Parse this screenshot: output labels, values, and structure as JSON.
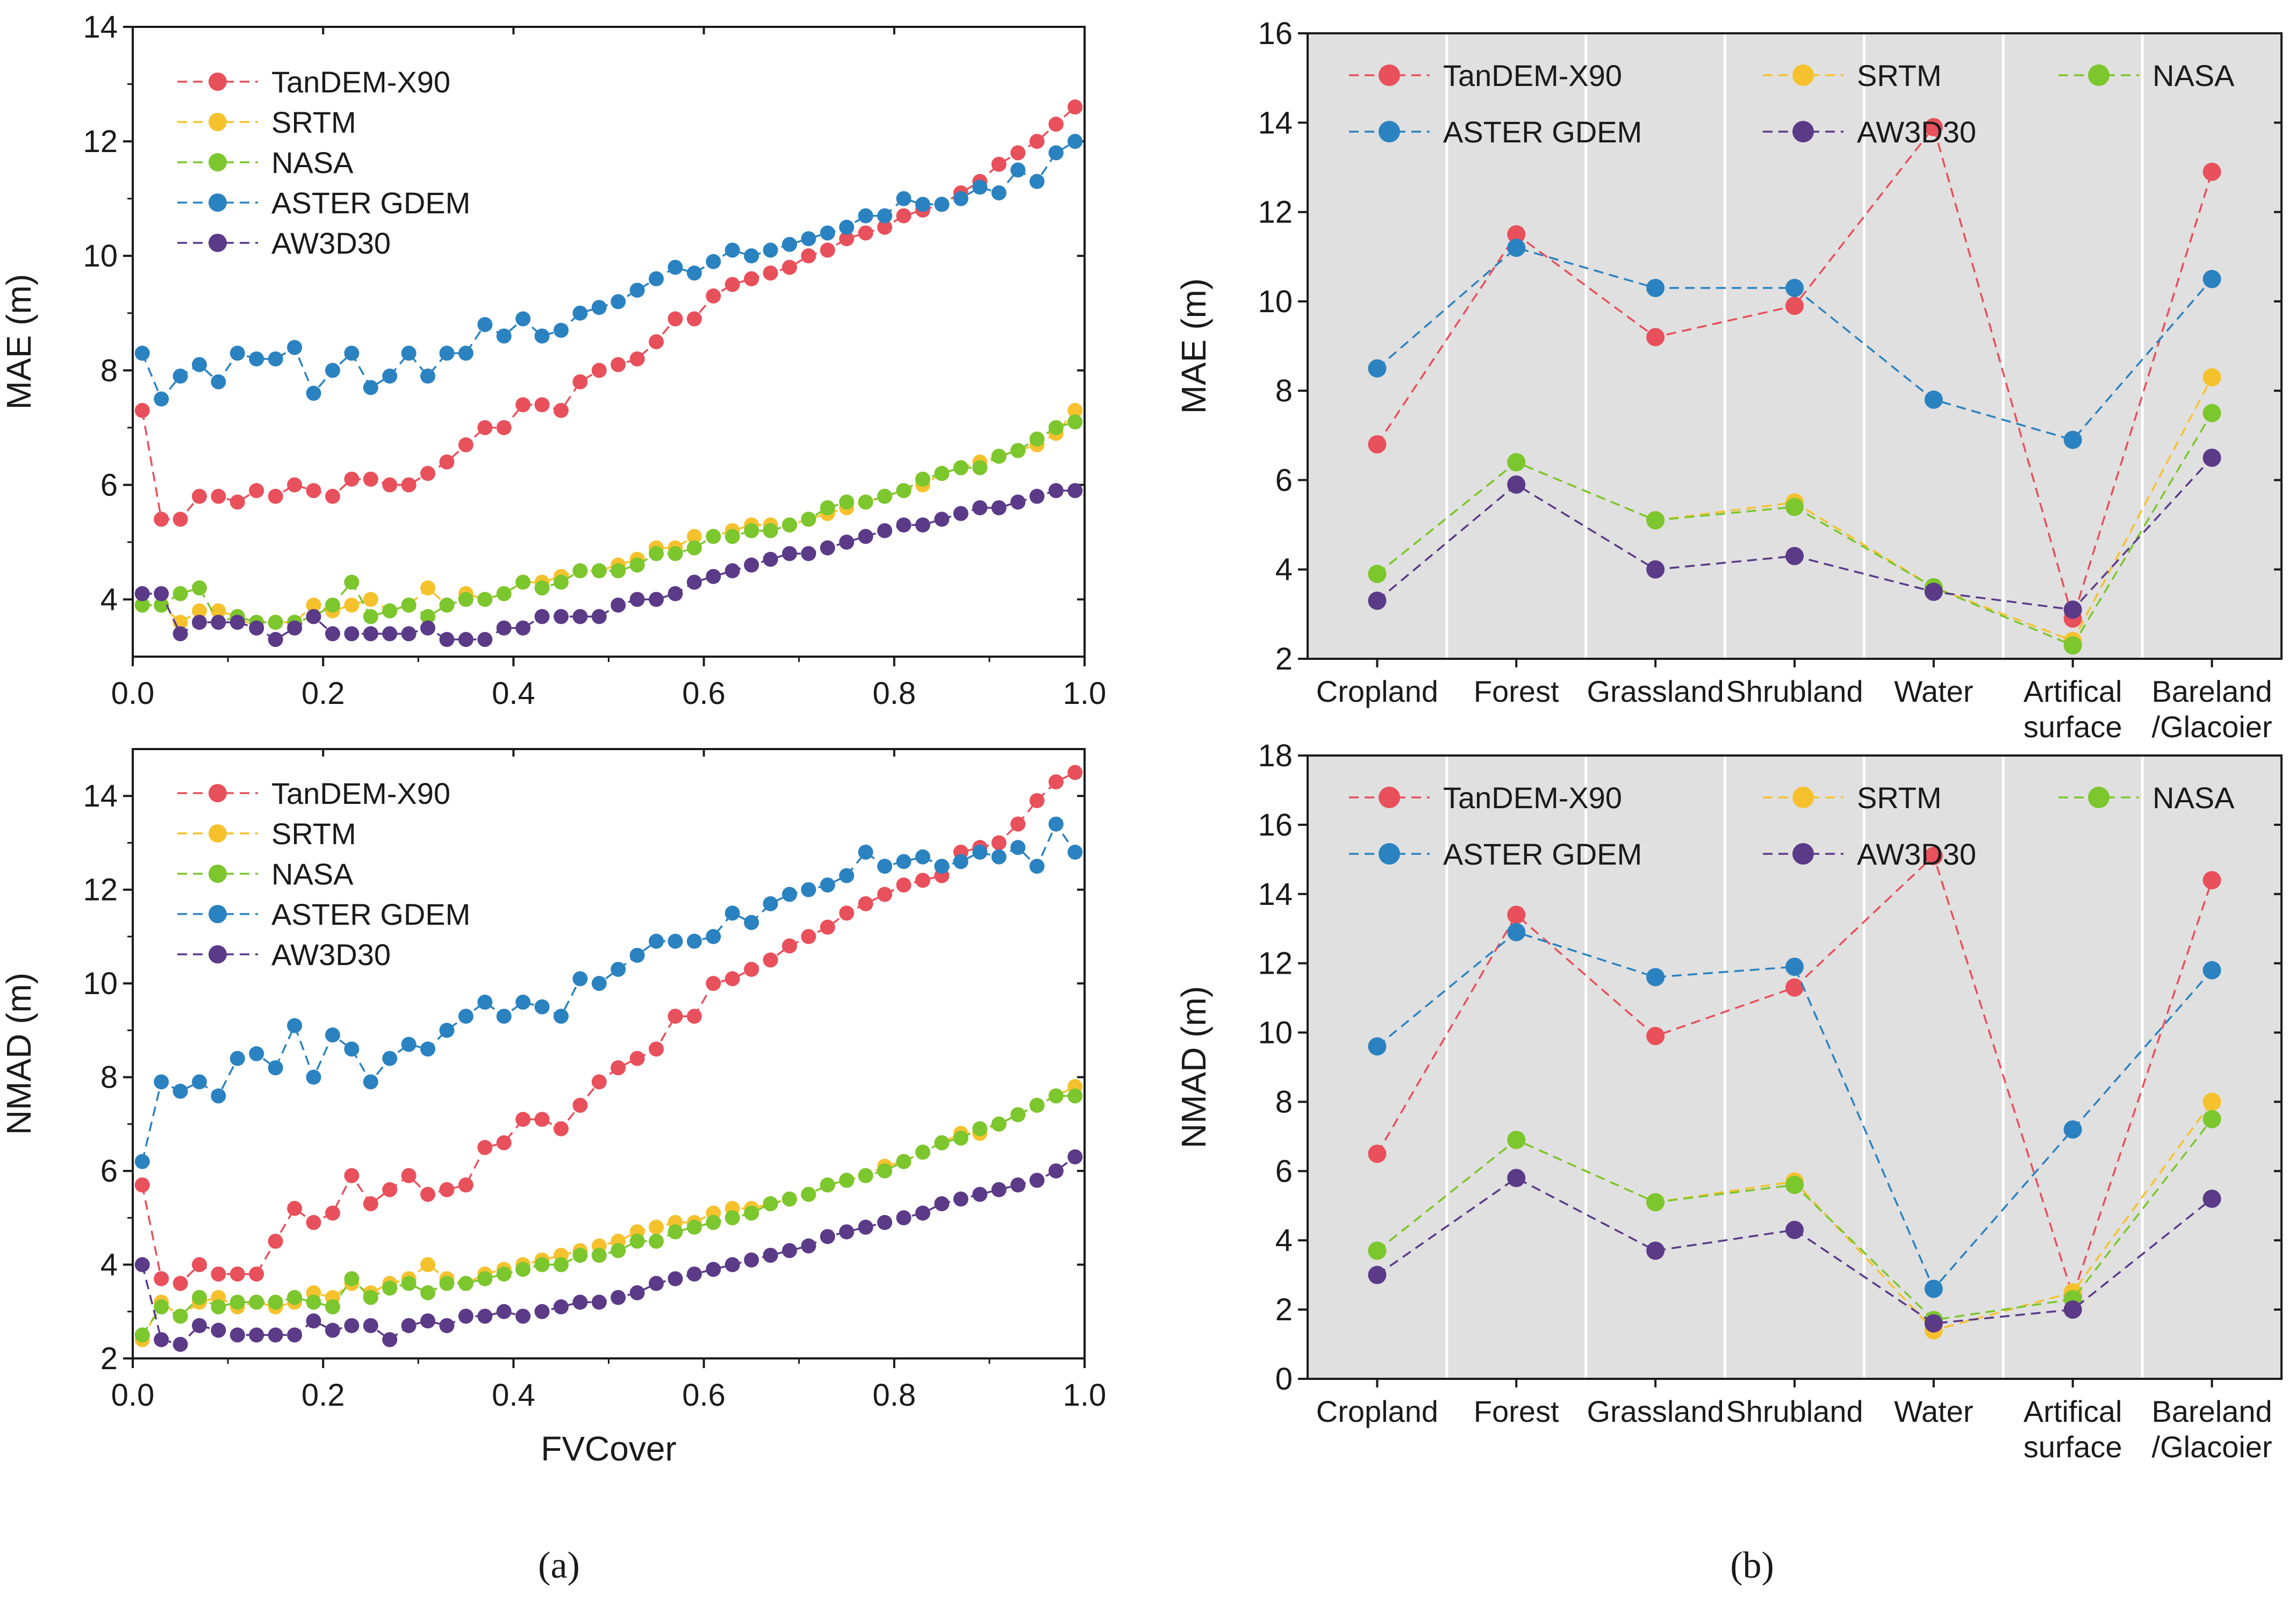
{
  "figure": {
    "panel_labels": [
      "(a)",
      "(b)"
    ],
    "colors": {
      "TanDEM-X90": "#e8505b",
      "SRTM": "#f5c22e",
      "NASA": "#7cc62e",
      "ASTER GDEM": "#2b82c0",
      "AW3D30": "#5b3a88",
      "panel_b_background": "#e0e0e0"
    }
  },
  "chart_data": [
    {
      "id": "a-top",
      "type": "line",
      "title": "",
      "xlabel": "",
      "ylabel": "MAE (m)",
      "xlim": [
        0,
        1
      ],
      "ylim": [
        3,
        14
      ],
      "xticks": [
        0.0,
        0.2,
        0.4,
        0.6,
        0.8,
        1.0
      ],
      "xtick_labels": [
        "0.0",
        "0.2",
        "0.4",
        "0.6",
        "0.8",
        "1.0"
      ],
      "yticks": [
        4,
        6,
        8,
        10,
        12,
        14
      ],
      "ytick_labels": [
        "4",
        "6",
        "8",
        "10",
        "12",
        "14"
      ],
      "legend": "top-left",
      "x": [
        0.01,
        0.03,
        0.05,
        0.07,
        0.09,
        0.11,
        0.13,
        0.15,
        0.17,
        0.19,
        0.21,
        0.23,
        0.25,
        0.27,
        0.29,
        0.31,
        0.33,
        0.35,
        0.37,
        0.39,
        0.41,
        0.43,
        0.45,
        0.47,
        0.49,
        0.51,
        0.53,
        0.55,
        0.57,
        0.59,
        0.61,
        0.63,
        0.65,
        0.67,
        0.69,
        0.71,
        0.73,
        0.75,
        0.77,
        0.79,
        0.81,
        0.83,
        0.85,
        0.87,
        0.89,
        0.91,
        0.93,
        0.95,
        0.97,
        0.99
      ],
      "series": [
        {
          "name": "TanDEM-X90",
          "values": [
            7.3,
            5.4,
            5.4,
            5.8,
            5.8,
            5.7,
            5.9,
            5.8,
            6.0,
            5.9,
            5.8,
            6.1,
            6.1,
            6.0,
            6.0,
            6.2,
            6.4,
            6.7,
            7.0,
            7.0,
            7.4,
            7.4,
            7.3,
            7.8,
            8.0,
            8.1,
            8.2,
            8.5,
            8.9,
            8.9,
            9.3,
            9.5,
            9.6,
            9.7,
            9.8,
            10.0,
            10.1,
            10.3,
            10.4,
            10.5,
            10.7,
            10.8,
            10.9,
            11.1,
            11.3,
            11.6,
            11.8,
            12.0,
            12.3,
            12.6
          ]
        },
        {
          "name": "SRTM",
          "values": [
            3.9,
            3.9,
            3.6,
            3.8,
            3.8,
            3.7,
            3.5,
            3.6,
            3.6,
            3.9,
            3.8,
            3.9,
            4.0,
            3.8,
            3.9,
            4.2,
            3.9,
            4.1,
            4.0,
            4.1,
            4.3,
            4.3,
            4.4,
            4.5,
            4.5,
            4.6,
            4.7,
            4.9,
            4.9,
            5.1,
            5.1,
            5.2,
            5.3,
            5.3,
            5.3,
            5.4,
            5.5,
            5.6,
            5.7,
            5.8,
            5.9,
            6.0,
            6.2,
            6.3,
            6.4,
            6.5,
            6.6,
            6.7,
            6.9,
            7.3
          ]
        },
        {
          "name": "NASA",
          "values": [
            3.9,
            3.9,
            4.1,
            4.2,
            3.6,
            3.7,
            3.6,
            3.6,
            3.6,
            3.7,
            3.9,
            4.3,
            3.7,
            3.8,
            3.9,
            3.7,
            3.9,
            4.0,
            4.0,
            4.1,
            4.3,
            4.2,
            4.3,
            4.5,
            4.5,
            4.5,
            4.6,
            4.8,
            4.8,
            4.9,
            5.1,
            5.1,
            5.2,
            5.2,
            5.3,
            5.4,
            5.6,
            5.7,
            5.7,
            5.8,
            5.9,
            6.1,
            6.2,
            6.3,
            6.3,
            6.5,
            6.6,
            6.8,
            7.0,
            7.1
          ]
        },
        {
          "name": "ASTER GDEM",
          "values": [
            8.3,
            7.5,
            7.9,
            8.1,
            7.8,
            8.3,
            8.2,
            8.2,
            8.4,
            7.6,
            8.0,
            8.3,
            7.7,
            7.9,
            8.3,
            7.9,
            8.3,
            8.3,
            8.8,
            8.6,
            8.9,
            8.6,
            8.7,
            9.0,
            9.1,
            9.2,
            9.4,
            9.6,
            9.8,
            9.7,
            9.9,
            10.1,
            10.0,
            10.1,
            10.2,
            10.3,
            10.4,
            10.5,
            10.7,
            10.7,
            11.0,
            10.9,
            10.9,
            11.0,
            11.2,
            11.1,
            11.5,
            11.3,
            11.8,
            12.0
          ]
        },
        {
          "name": "AW3D30",
          "values": [
            4.1,
            4.1,
            3.4,
            3.6,
            3.6,
            3.6,
            3.5,
            3.3,
            3.5,
            3.7,
            3.4,
            3.4,
            3.4,
            3.4,
            3.4,
            3.5,
            3.3,
            3.3,
            3.3,
            3.5,
            3.5,
            3.7,
            3.7,
            3.7,
            3.7,
            3.9,
            4.0,
            4.0,
            4.1,
            4.3,
            4.4,
            4.5,
            4.6,
            4.7,
            4.8,
            4.8,
            4.9,
            5.0,
            5.1,
            5.2,
            5.3,
            5.3,
            5.4,
            5.5,
            5.6,
            5.6,
            5.7,
            5.8,
            5.9,
            5.9
          ]
        }
      ]
    },
    {
      "id": "a-bottom",
      "type": "line",
      "title": "",
      "xlabel": "FVCover",
      "ylabel": "NMAD (m)",
      "xlim": [
        0,
        1
      ],
      "ylim": [
        2,
        15
      ],
      "xticks": [
        0.0,
        0.2,
        0.4,
        0.6,
        0.8,
        1.0
      ],
      "xtick_labels": [
        "0.0",
        "0.2",
        "0.4",
        "0.6",
        "0.8",
        "1.0"
      ],
      "yticks": [
        2,
        4,
        6,
        8,
        10,
        12,
        14
      ],
      "ytick_labels": [
        "2",
        "4",
        "6",
        "8",
        "10",
        "12",
        "14"
      ],
      "legend": "top-left",
      "x": [
        0.01,
        0.03,
        0.05,
        0.07,
        0.09,
        0.11,
        0.13,
        0.15,
        0.17,
        0.19,
        0.21,
        0.23,
        0.25,
        0.27,
        0.29,
        0.31,
        0.33,
        0.35,
        0.37,
        0.39,
        0.41,
        0.43,
        0.45,
        0.47,
        0.49,
        0.51,
        0.53,
        0.55,
        0.57,
        0.59,
        0.61,
        0.63,
        0.65,
        0.67,
        0.69,
        0.71,
        0.73,
        0.75,
        0.77,
        0.79,
        0.81,
        0.83,
        0.85,
        0.87,
        0.89,
        0.91,
        0.93,
        0.95,
        0.97,
        0.99
      ],
      "series": [
        {
          "name": "TanDEM-X90",
          "values": [
            5.7,
            3.7,
            3.6,
            4.0,
            3.8,
            3.8,
            3.8,
            4.5,
            5.2,
            4.9,
            5.1,
            5.9,
            5.3,
            5.6,
            5.9,
            5.5,
            5.6,
            5.7,
            6.5,
            6.6,
            7.1,
            7.1,
            6.9,
            7.4,
            7.9,
            8.2,
            8.4,
            8.6,
            9.3,
            9.3,
            10.0,
            10.1,
            10.3,
            10.5,
            10.8,
            11.0,
            11.2,
            11.5,
            11.7,
            11.9,
            12.1,
            12.2,
            12.3,
            12.8,
            12.9,
            13.0,
            13.4,
            13.9,
            14.3,
            14.5
          ]
        },
        {
          "name": "SRTM",
          "values": [
            2.4,
            3.2,
            2.9,
            3.2,
            3.3,
            3.1,
            3.2,
            3.1,
            3.2,
            3.4,
            3.3,
            3.6,
            3.4,
            3.6,
            3.7,
            4.0,
            3.7,
            3.6,
            3.8,
            3.9,
            4.0,
            4.1,
            4.2,
            4.3,
            4.4,
            4.5,
            4.7,
            4.8,
            4.9,
            4.9,
            5.1,
            5.2,
            5.2,
            5.3,
            5.4,
            5.5,
            5.7,
            5.8,
            5.9,
            6.1,
            6.2,
            6.4,
            6.6,
            6.8,
            6.8,
            7.0,
            7.2,
            7.4,
            7.6,
            7.8
          ]
        },
        {
          "name": "NASA",
          "values": [
            2.5,
            3.1,
            2.9,
            3.3,
            3.1,
            3.2,
            3.2,
            3.2,
            3.3,
            3.2,
            3.1,
            3.7,
            3.3,
            3.5,
            3.6,
            3.4,
            3.6,
            3.6,
            3.7,
            3.8,
            3.9,
            4.0,
            4.0,
            4.2,
            4.2,
            4.3,
            4.5,
            4.5,
            4.7,
            4.8,
            4.9,
            5.0,
            5.1,
            5.3,
            5.4,
            5.5,
            5.7,
            5.8,
            5.9,
            6.0,
            6.2,
            6.4,
            6.6,
            6.7,
            6.9,
            7.0,
            7.2,
            7.4,
            7.6,
            7.6
          ]
        },
        {
          "name": "ASTER GDEM",
          "values": [
            6.2,
            7.9,
            7.7,
            7.9,
            7.6,
            8.4,
            8.5,
            8.2,
            9.1,
            8.0,
            8.9,
            8.6,
            7.9,
            8.4,
            8.7,
            8.6,
            9.0,
            9.3,
            9.6,
            9.3,
            9.6,
            9.5,
            9.3,
            10.1,
            10.0,
            10.3,
            10.6,
            10.9,
            10.9,
            10.9,
            11.0,
            11.5,
            11.3,
            11.7,
            11.9,
            12.0,
            12.1,
            12.3,
            12.8,
            12.5,
            12.6,
            12.7,
            12.5,
            12.6,
            12.8,
            12.7,
            12.9,
            12.5,
            13.4,
            12.8
          ]
        },
        {
          "name": "AW3D30",
          "values": [
            4.0,
            2.4,
            2.3,
            2.7,
            2.6,
            2.5,
            2.5,
            2.5,
            2.5,
            2.8,
            2.6,
            2.7,
            2.7,
            2.4,
            2.7,
            2.8,
            2.7,
            2.9,
            2.9,
            3.0,
            2.9,
            3.0,
            3.1,
            3.2,
            3.2,
            3.3,
            3.4,
            3.6,
            3.7,
            3.8,
            3.9,
            4.0,
            4.1,
            4.2,
            4.3,
            4.4,
            4.6,
            4.7,
            4.8,
            4.9,
            5.0,
            5.1,
            5.3,
            5.4,
            5.5,
            5.6,
            5.7,
            5.8,
            6.0,
            6.3
          ]
        }
      ]
    },
    {
      "id": "b-top",
      "type": "line",
      "title": "",
      "xlabel": "",
      "ylabel": "MAE (m)",
      "categories": [
        "Cropland",
        "Forest",
        "Grassland",
        "Shrubland",
        "Water",
        "Artifical surface",
        "Bareland /Glacoier"
      ],
      "category_labels": [
        [
          "Cropland"
        ],
        [
          "Forest"
        ],
        [
          "Grassland"
        ],
        [
          "Shrubland"
        ],
        [
          "Water"
        ],
        [
          "Artifical",
          "surface"
        ],
        [
          "Bareland",
          "/Glacoier"
        ]
      ],
      "ylim": [
        2,
        16
      ],
      "yticks": [
        2,
        4,
        6,
        8,
        10,
        12,
        14,
        16
      ],
      "ytick_labels": [
        "2",
        "4",
        "6",
        "8",
        "10",
        "12",
        "14",
        "16"
      ],
      "legend": "top, two rows",
      "grid": "vertical white separators between categories",
      "series": [
        {
          "name": "TanDEM-X90",
          "values": [
            6.8,
            11.5,
            9.2,
            9.9,
            13.9,
            2.9,
            12.9
          ]
        },
        {
          "name": "SRTM",
          "values": [
            3.9,
            6.4,
            5.1,
            5.5,
            3.6,
            2.4,
            8.3
          ]
        },
        {
          "name": "NASA",
          "values": [
            3.9,
            6.4,
            5.1,
            5.4,
            3.6,
            2.3,
            7.5
          ]
        },
        {
          "name": "ASTER GDEM",
          "values": [
            8.5,
            11.2,
            10.3,
            10.3,
            7.8,
            6.9,
            10.5
          ]
        },
        {
          "name": "AW3D30",
          "values": [
            3.3,
            5.9,
            4.0,
            4.3,
            3.5,
            3.1,
            6.5
          ]
        }
      ]
    },
    {
      "id": "b-bottom",
      "type": "line",
      "title": "",
      "xlabel": "",
      "ylabel": "NMAD (m)",
      "categories": [
        "Cropland",
        "Forest",
        "Grassland",
        "Shrubland",
        "Water",
        "Artifical surface",
        "Bareland /Glacoier"
      ],
      "category_labels": [
        [
          "Cropland"
        ],
        [
          "Forest"
        ],
        [
          "Grassland"
        ],
        [
          "Shrubland"
        ],
        [
          "Water"
        ],
        [
          "Artifical",
          "surface"
        ],
        [
          "Bareland",
          "/Glacoier"
        ]
      ],
      "ylim": [
        0,
        18
      ],
      "yticks": [
        0,
        2,
        4,
        6,
        8,
        10,
        12,
        14,
        16,
        18
      ],
      "ytick_labels": [
        "0",
        "2",
        "4",
        "6",
        "8",
        "10",
        "12",
        "14",
        "16",
        "18"
      ],
      "legend": "top, two rows",
      "grid": "vertical white separators between categories",
      "series": [
        {
          "name": "TanDEM-X90",
          "values": [
            6.5,
            13.4,
            9.9,
            11.3,
            15.1,
            2.4,
            14.4
          ]
        },
        {
          "name": "SRTM",
          "values": [
            3.7,
            6.9,
            5.1,
            5.7,
            1.4,
            2.5,
            8.0
          ]
        },
        {
          "name": "NASA",
          "values": [
            3.7,
            6.9,
            5.1,
            5.6,
            1.7,
            2.3,
            7.5
          ]
        },
        {
          "name": "ASTER GDEM",
          "values": [
            9.6,
            12.9,
            11.6,
            11.9,
            2.6,
            7.2,
            11.8
          ]
        },
        {
          "name": "AW3D30",
          "values": [
            3.0,
            5.8,
            3.7,
            4.3,
            1.6,
            2.0,
            5.2
          ]
        }
      ]
    }
  ]
}
